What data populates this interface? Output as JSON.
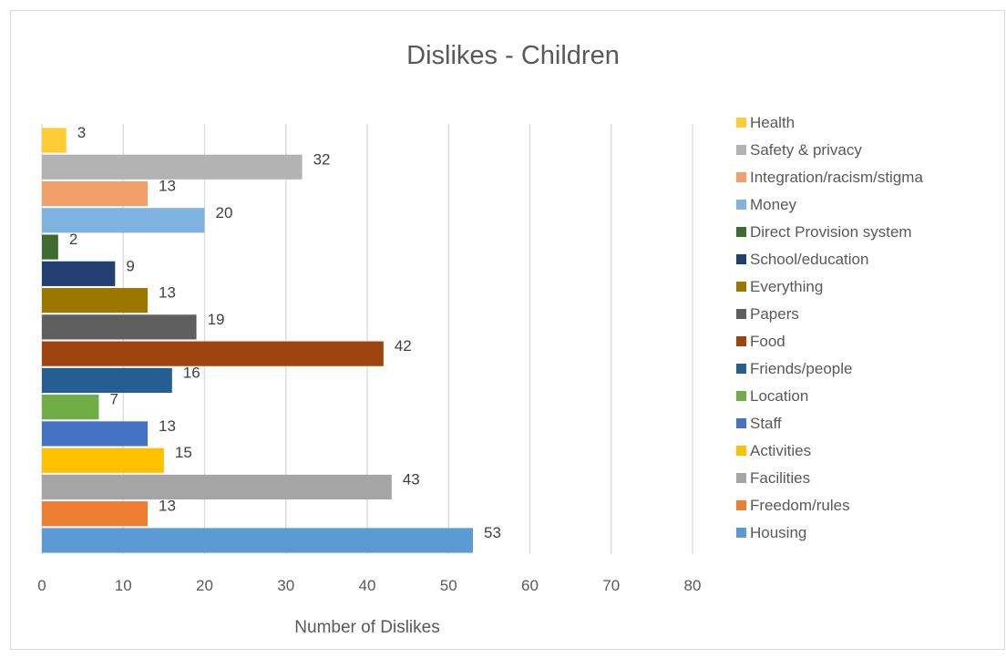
{
  "chart_data": {
    "type": "bar",
    "orientation": "horizontal",
    "title": "Dislikes - Children",
    "xlabel": "Number of Dislikes",
    "ylabel": "",
    "xlim": [
      0,
      80
    ],
    "x_ticks": [
      0,
      10,
      20,
      30,
      40,
      50,
      60,
      70,
      80
    ],
    "grid": true,
    "legend_position": "right",
    "categories": [
      "Health",
      "Safety & privacy",
      "Integration/racism/stigma",
      "Money",
      "Direct Provision system",
      "School/education",
      "Everything",
      "Papers",
      "Food",
      "Friends/people",
      "Location",
      "Staff",
      "Activities",
      "Facilities",
      "Freedom/rules",
      "Housing"
    ],
    "values": [
      3,
      32,
      13,
      20,
      2,
      9,
      13,
      19,
      42,
      16,
      7,
      13,
      15,
      43,
      13,
      53
    ],
    "colors": [
      "#ffcd33",
      "#b3b3b3",
      "#f2a06b",
      "#7fb3e0",
      "#3d6b30",
      "#223f73",
      "#9c7700",
      "#5f5f5f",
      "#a0440f",
      "#255e91",
      "#70ad47",
      "#4472c4",
      "#ffc000",
      "#a5a5a5",
      "#ed7d31",
      "#5b9bd5"
    ]
  }
}
